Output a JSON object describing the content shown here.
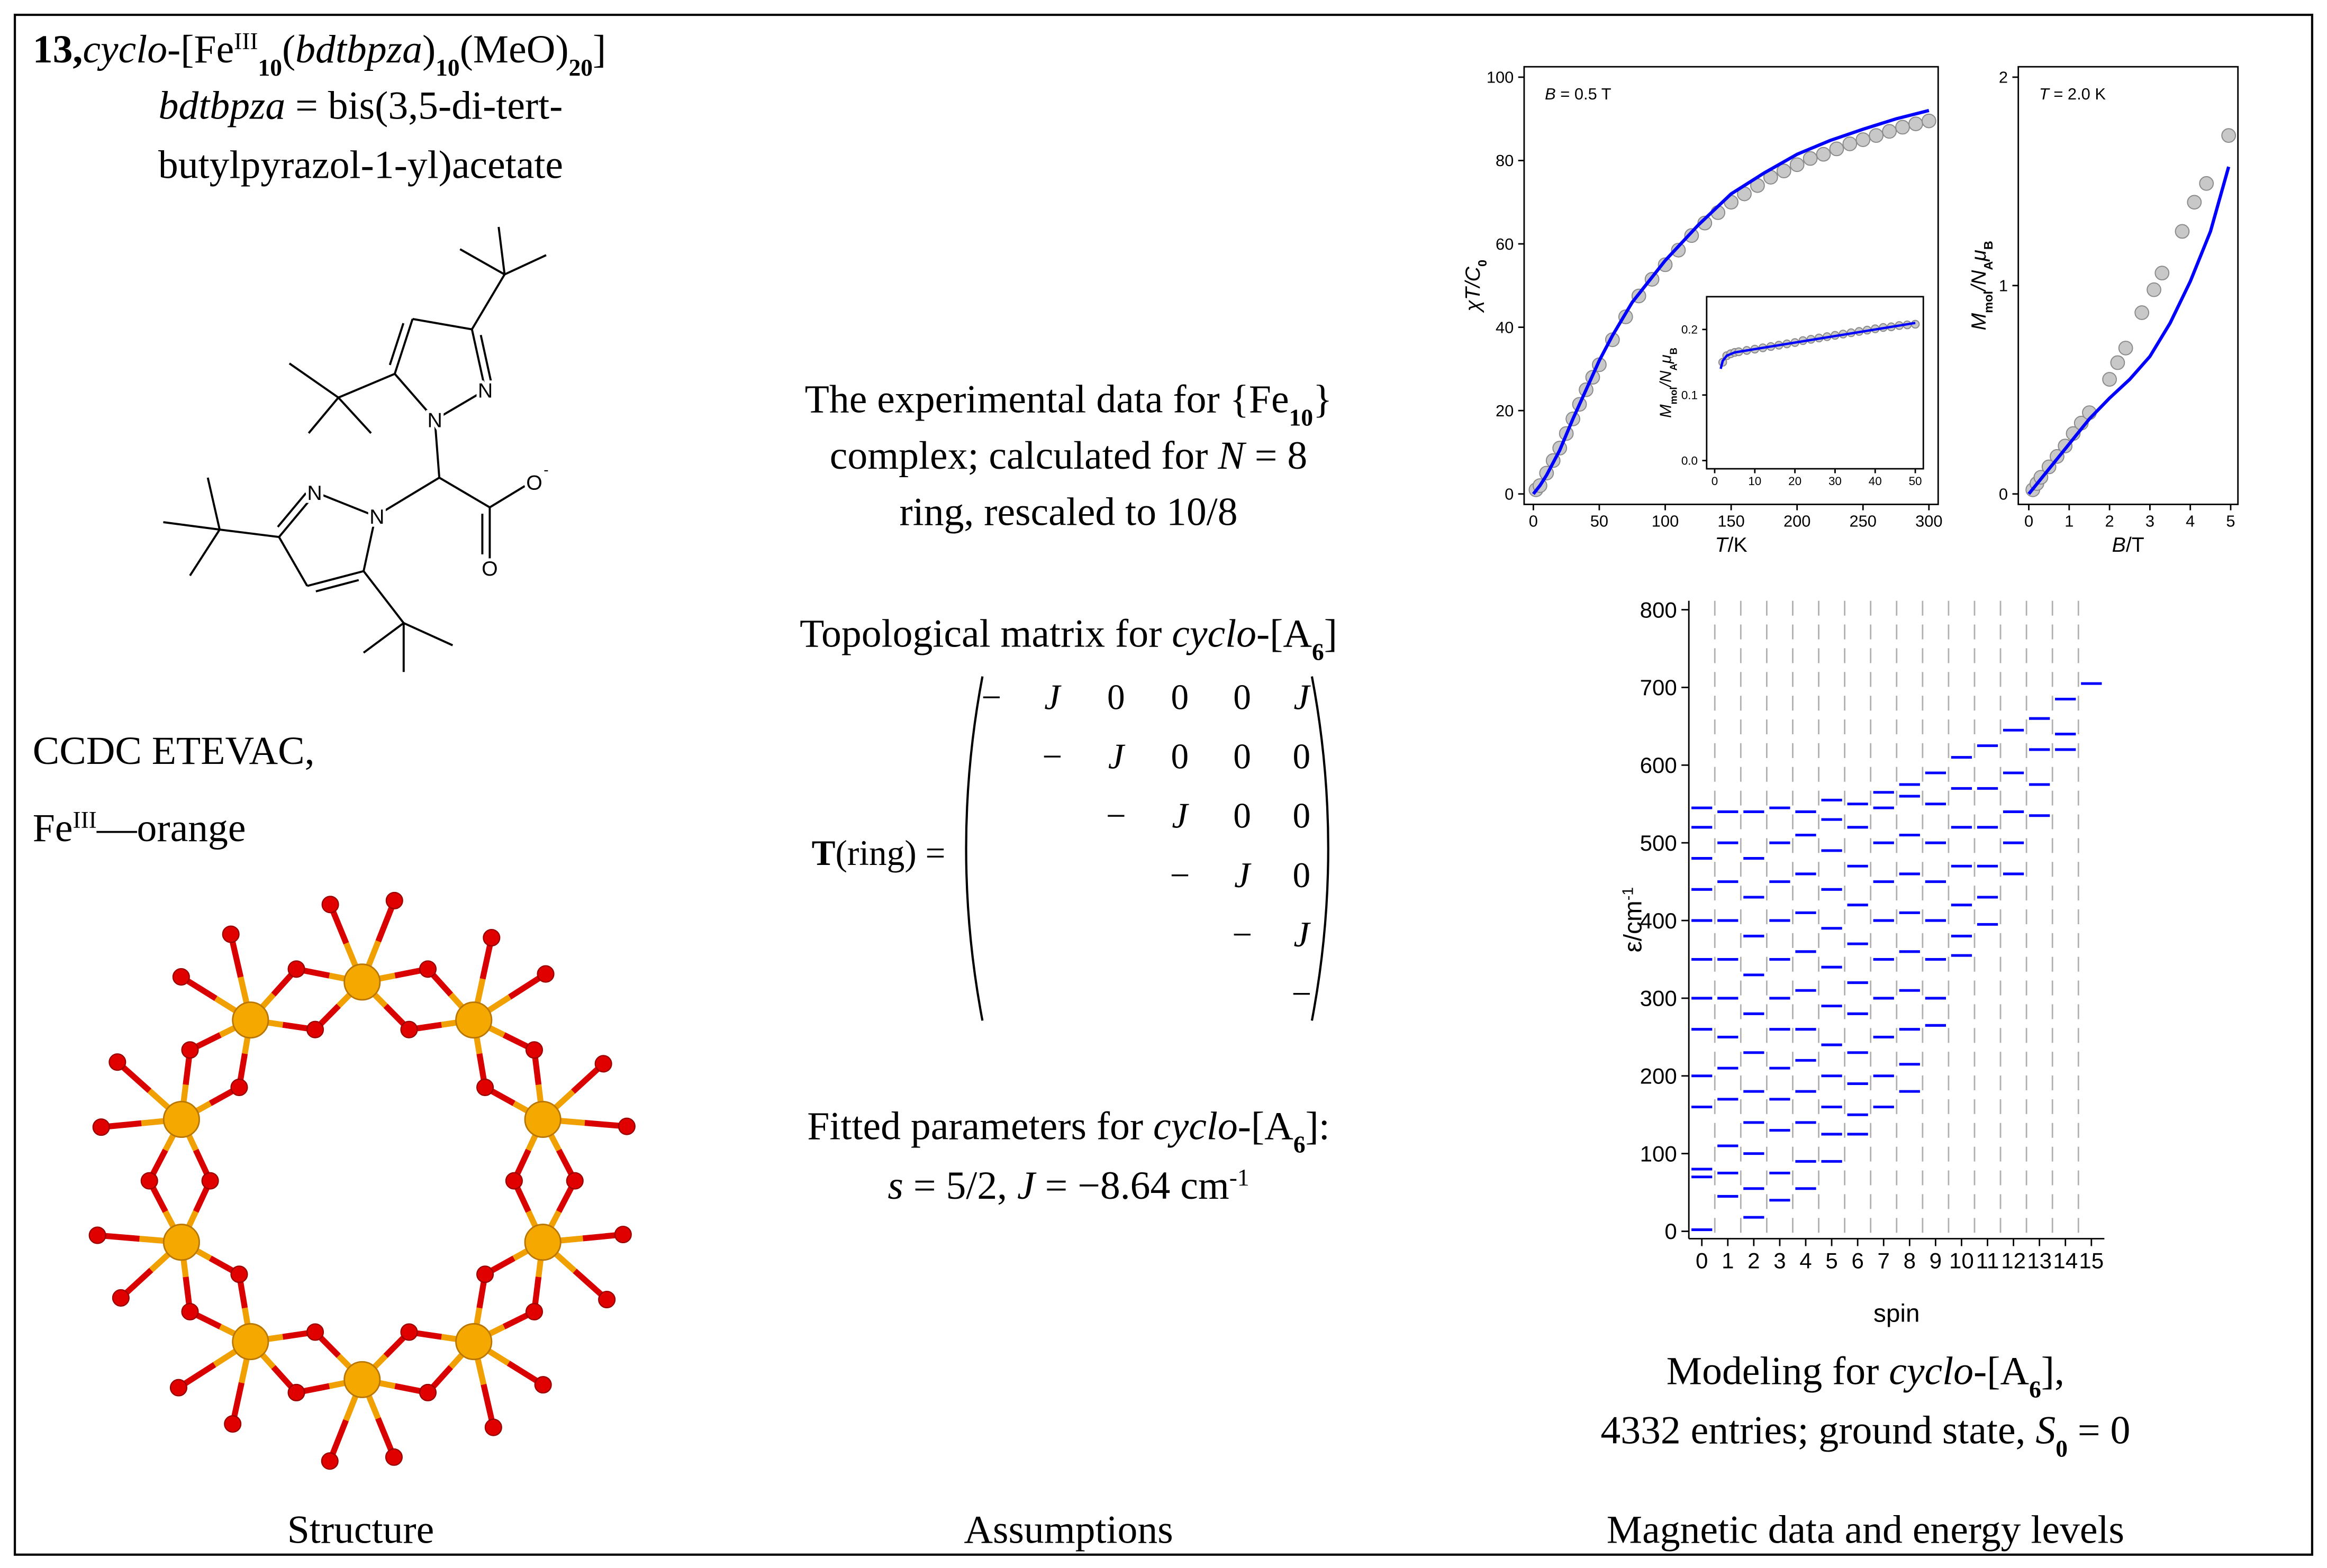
{
  "left": {
    "title": [
      "13,",
      "cyclo",
      "-[Fe",
      "III",
      "10",
      "(",
      "bdtbpza",
      ")",
      "10",
      "(MeO)",
      "20",
      "]"
    ],
    "ligand_line1": [
      "bdtbpza",
      " = bis(3,5-di-tert-"
    ],
    "ligand_line2": "butylpyrazol-1-yl)acetate",
    "atoms": [
      "N",
      "N",
      "N",
      "N",
      "O",
      "-",
      "O"
    ],
    "ccdc": "CCDC ETEVAC,",
    "color_note": [
      "Fe",
      "III",
      "—orange"
    ],
    "caption": "Structure"
  },
  "center": {
    "line1": [
      "The experimental data for {Fe",
      "10",
      "}"
    ],
    "line2": [
      "complex; calculated for ",
      "N",
      " = 8"
    ],
    "line3": "ring, rescaled to 10/8",
    "matrix_title": [
      "Topological matrix for ",
      "cyclo",
      "-[A",
      "6",
      "]"
    ],
    "matrix_lhs": [
      "T",
      "(ring) ="
    ],
    "matrix": [
      [
        "−",
        "J",
        "0",
        "0",
        "0",
        "J"
      ],
      [
        null,
        "−",
        "J",
        "0",
        "0",
        "0"
      ],
      [
        null,
        null,
        "−",
        "J",
        "0",
        "0"
      ],
      [
        null,
        null,
        null,
        "−",
        "J",
        "0"
      ],
      [
        null,
        null,
        null,
        null,
        "−",
        "J"
      ],
      [
        null,
        null,
        null,
        null,
        null,
        "−"
      ]
    ],
    "fit_line1": [
      "Fitted parameters for ",
      "cyclo",
      "-[A",
      "6",
      "]:"
    ],
    "fit_line2": [
      "s",
      " = 5/2, ",
      "J",
      " = −8.64 cm",
      "-1"
    ],
    "caption": "Assumptions"
  },
  "right": {
    "caption_line1": [
      "Modeling for ",
      "cyclo",
      "-[A",
      "6",
      "],"
    ],
    "caption_line2": [
      "4332 entries; ground state, ",
      "S",
      "0",
      " = 0"
    ],
    "caption": "Magnetic data and energy levels"
  },
  "chart_data": [
    {
      "type": "scatter_line",
      "xlabel": [
        "T",
        "/K"
      ],
      "ylabel": [
        "χ",
        "T",
        "/C",
        "0"
      ],
      "annotation": [
        "B",
        " = 0.5 T"
      ],
      "xlim": [
        -7,
        307
      ],
      "ylim": [
        -2.5,
        102.5
      ],
      "xticks": [
        0,
        50,
        100,
        150,
        200,
        250,
        300
      ],
      "yticks": [
        0,
        20,
        40,
        60,
        80,
        100
      ],
      "series": [
        {
          "color": "#c8c8c8",
          "marker": "circle",
          "x": [
            2,
            5,
            10,
            15,
            20,
            25,
            30,
            35,
            40,
            45,
            50,
            60,
            70,
            80,
            90,
            100,
            110,
            120,
            130,
            140,
            150,
            160,
            170,
            180,
            190,
            200,
            210,
            220,
            230,
            240,
            250,
            260,
            270,
            280,
            290,
            300
          ],
          "values": [
            1,
            2,
            5,
            8,
            11,
            14.5,
            18,
            21.5,
            25,
            28,
            31,
            37,
            42.5,
            47.5,
            51.5,
            55,
            58.5,
            62,
            65,
            67.5,
            70,
            72,
            74,
            76,
            77.5,
            79,
            80.5,
            81.5,
            82.8,
            84,
            85,
            86,
            87,
            88,
            88.8,
            89.5
          ]
        },
        {
          "color": "#0000ff",
          "marker": "line",
          "x": [
            0,
            5,
            10,
            20,
            30,
            40,
            50,
            60,
            75,
            100,
            125,
            150,
            175,
            200,
            225,
            250,
            275,
            300
          ],
          "values": [
            0,
            2,
            4.5,
            10.5,
            18,
            25,
            32,
            38,
            46,
            56,
            64.5,
            72,
            77,
            81.5,
            84.8,
            87.5,
            90,
            92
          ]
        }
      ]
    },
    {
      "type": "scatter_line",
      "ylabel": [
        "M",
        "mol",
        "/N",
        "A",
        "μ",
        "B"
      ],
      "xlim": [
        -2,
        52
      ],
      "ylim": [
        -0.0125,
        0.25
      ],
      "xticks": [
        0,
        10,
        20,
        30,
        40,
        50
      ],
      "yticks": [
        {
          "value": 0,
          "label": "0.0"
        },
        {
          "value": 0.1,
          "label": "0.1"
        },
        {
          "value": 0.2,
          "label": "0.2"
        }
      ],
      "series": [
        {
          "color": "#c8c8c8",
          "marker": "circle",
          "x": [
            2,
            3,
            4,
            5,
            6,
            8,
            10,
            12,
            14,
            16,
            18,
            20,
            22,
            24,
            26,
            28,
            30,
            32,
            34,
            36,
            38,
            40,
            42,
            44,
            46,
            48,
            50
          ],
          "values": [
            0.15,
            0.16,
            0.163,
            0.165,
            0.166,
            0.168,
            0.17,
            0.172,
            0.174,
            0.176,
            0.178,
            0.18,
            0.183,
            0.185,
            0.187,
            0.189,
            0.191,
            0.193,
            0.195,
            0.197,
            0.199,
            0.201,
            0.203,
            0.204,
            0.206,
            0.207,
            0.208
          ]
        },
        {
          "color": "#0000ff",
          "marker": "line",
          "x": [
            1.5,
            2,
            3,
            5,
            10,
            20,
            30,
            40,
            50
          ],
          "values": [
            0.14,
            0.152,
            0.16,
            0.165,
            0.17,
            0.18,
            0.19,
            0.2,
            0.21
          ]
        }
      ]
    },
    {
      "type": "scatter_line",
      "xlabel": [
        "B",
        "/T"
      ],
      "ylabel": [
        "M",
        "mol",
        "/N",
        "A",
        "μ",
        "B"
      ],
      "annotation": [
        "T",
        " = 2.0 K"
      ],
      "xlim": [
        -0.26,
        5.18
      ],
      "ylim": [
        -0.05,
        2.05
      ],
      "xticks": [
        0,
        1,
        2,
        3,
        4,
        5
      ],
      "yticks": [
        0,
        1,
        2
      ],
      "series": [
        {
          "color": "#c8c8c8",
          "marker": "circle",
          "x": [
            0.1,
            0.2,
            0.3,
            0.5,
            0.7,
            0.9,
            1.1,
            1.3,
            1.5,
            2.0,
            2.2,
            2.4,
            2.8,
            3.1,
            3.3,
            3.8,
            4.1,
            4.4,
            4.95
          ],
          "values": [
            0.02,
            0.05,
            0.08,
            0.13,
            0.18,
            0.23,
            0.29,
            0.34,
            0.39,
            0.55,
            0.63,
            0.7,
            0.87,
            0.98,
            1.06,
            1.26,
            1.4,
            1.49,
            1.72
          ]
        },
        {
          "color": "#0000ff",
          "marker": "line",
          "x": [
            0,
            0.5,
            1,
            1.5,
            2,
            2.5,
            3,
            3.5,
            4,
            4.5,
            4.95
          ],
          "values": [
            0,
            0.12,
            0.24,
            0.36,
            0.46,
            0.55,
            0.66,
            0.82,
            1.02,
            1.26,
            1.57
          ]
        }
      ]
    },
    {
      "type": "levels",
      "xlabel": "spin",
      "ylabel": [
        "ε/cm",
        "-1"
      ],
      "color": "#0000ff",
      "grid": true,
      "categories": [
        "0",
        "1",
        "2",
        "3",
        "4",
        "5",
        "6",
        "7",
        "8",
        "9",
        "10",
        "11",
        "12",
        "13",
        "14",
        "15"
      ],
      "ylim": [
        -9.5,
        811.5
      ],
      "yticks": [
        0,
        100,
        200,
        300,
        400,
        500,
        600,
        700,
        800
      ],
      "values": [
        [
          2,
          70,
          80,
          160,
          200,
          260,
          300,
          350,
          400,
          440,
          480,
          520,
          545
        ],
        [
          45,
          75,
          110,
          170,
          210,
          250,
          300,
          350,
          400,
          450,
          500,
          540
        ],
        [
          18,
          55,
          100,
          140,
          180,
          230,
          280,
          330,
          380,
          430,
          480,
          540
        ],
        [
          40,
          75,
          130,
          170,
          210,
          260,
          300,
          350,
          400,
          450,
          500,
          545
        ],
        [
          55,
          90,
          140,
          180,
          220,
          260,
          310,
          360,
          410,
          460,
          510,
          540
        ],
        [
          90,
          125,
          160,
          200,
          240,
          290,
          340,
          390,
          440,
          490,
          530,
          555
        ],
        [
          125,
          150,
          190,
          230,
          280,
          320,
          370,
          420,
          470,
          520,
          550
        ],
        [
          160,
          200,
          250,
          300,
          350,
          400,
          450,
          500,
          545,
          565
        ],
        [
          180,
          215,
          260,
          310,
          360,
          410,
          460,
          510,
          560,
          575
        ],
        [
          265,
          300,
          350,
          400,
          450,
          500,
          550,
          590
        ],
        [
          355,
          380,
          420,
          470,
          520,
          570,
          610
        ],
        [
          395,
          430,
          470,
          520,
          570,
          625
        ],
        [
          460,
          500,
          540,
          590,
          645
        ],
        [
          535,
          575,
          620,
          660
        ],
        [
          620,
          640,
          685
        ],
        [
          705
        ]
      ]
    }
  ]
}
